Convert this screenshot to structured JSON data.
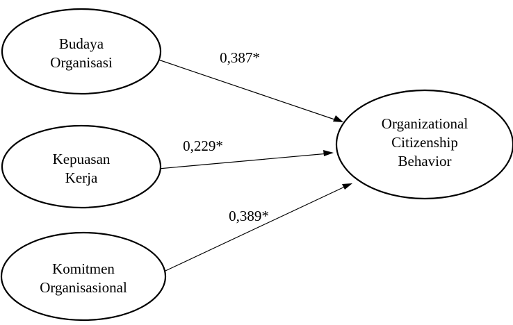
{
  "diagram": {
    "nodes": [
      {
        "id": "budaya",
        "lines": [
          "Budaya",
          "Organisasi"
        ]
      },
      {
        "id": "kepuasan",
        "lines": [
          "Kepuasan",
          "Kerja"
        ]
      },
      {
        "id": "komitmen",
        "lines": [
          "Komitmen",
          "Organisasional"
        ]
      },
      {
        "id": "ocb",
        "lines": [
          "Organizational",
          "Citizenship",
          "Behavior"
        ]
      }
    ],
    "edges": [
      {
        "from": "budaya",
        "to": "ocb",
        "label": "0,387*"
      },
      {
        "from": "kepuasan",
        "to": "ocb",
        "label": "0,229*"
      },
      {
        "from": "komitmen",
        "to": "ocb",
        "label": "0,389*"
      }
    ]
  }
}
